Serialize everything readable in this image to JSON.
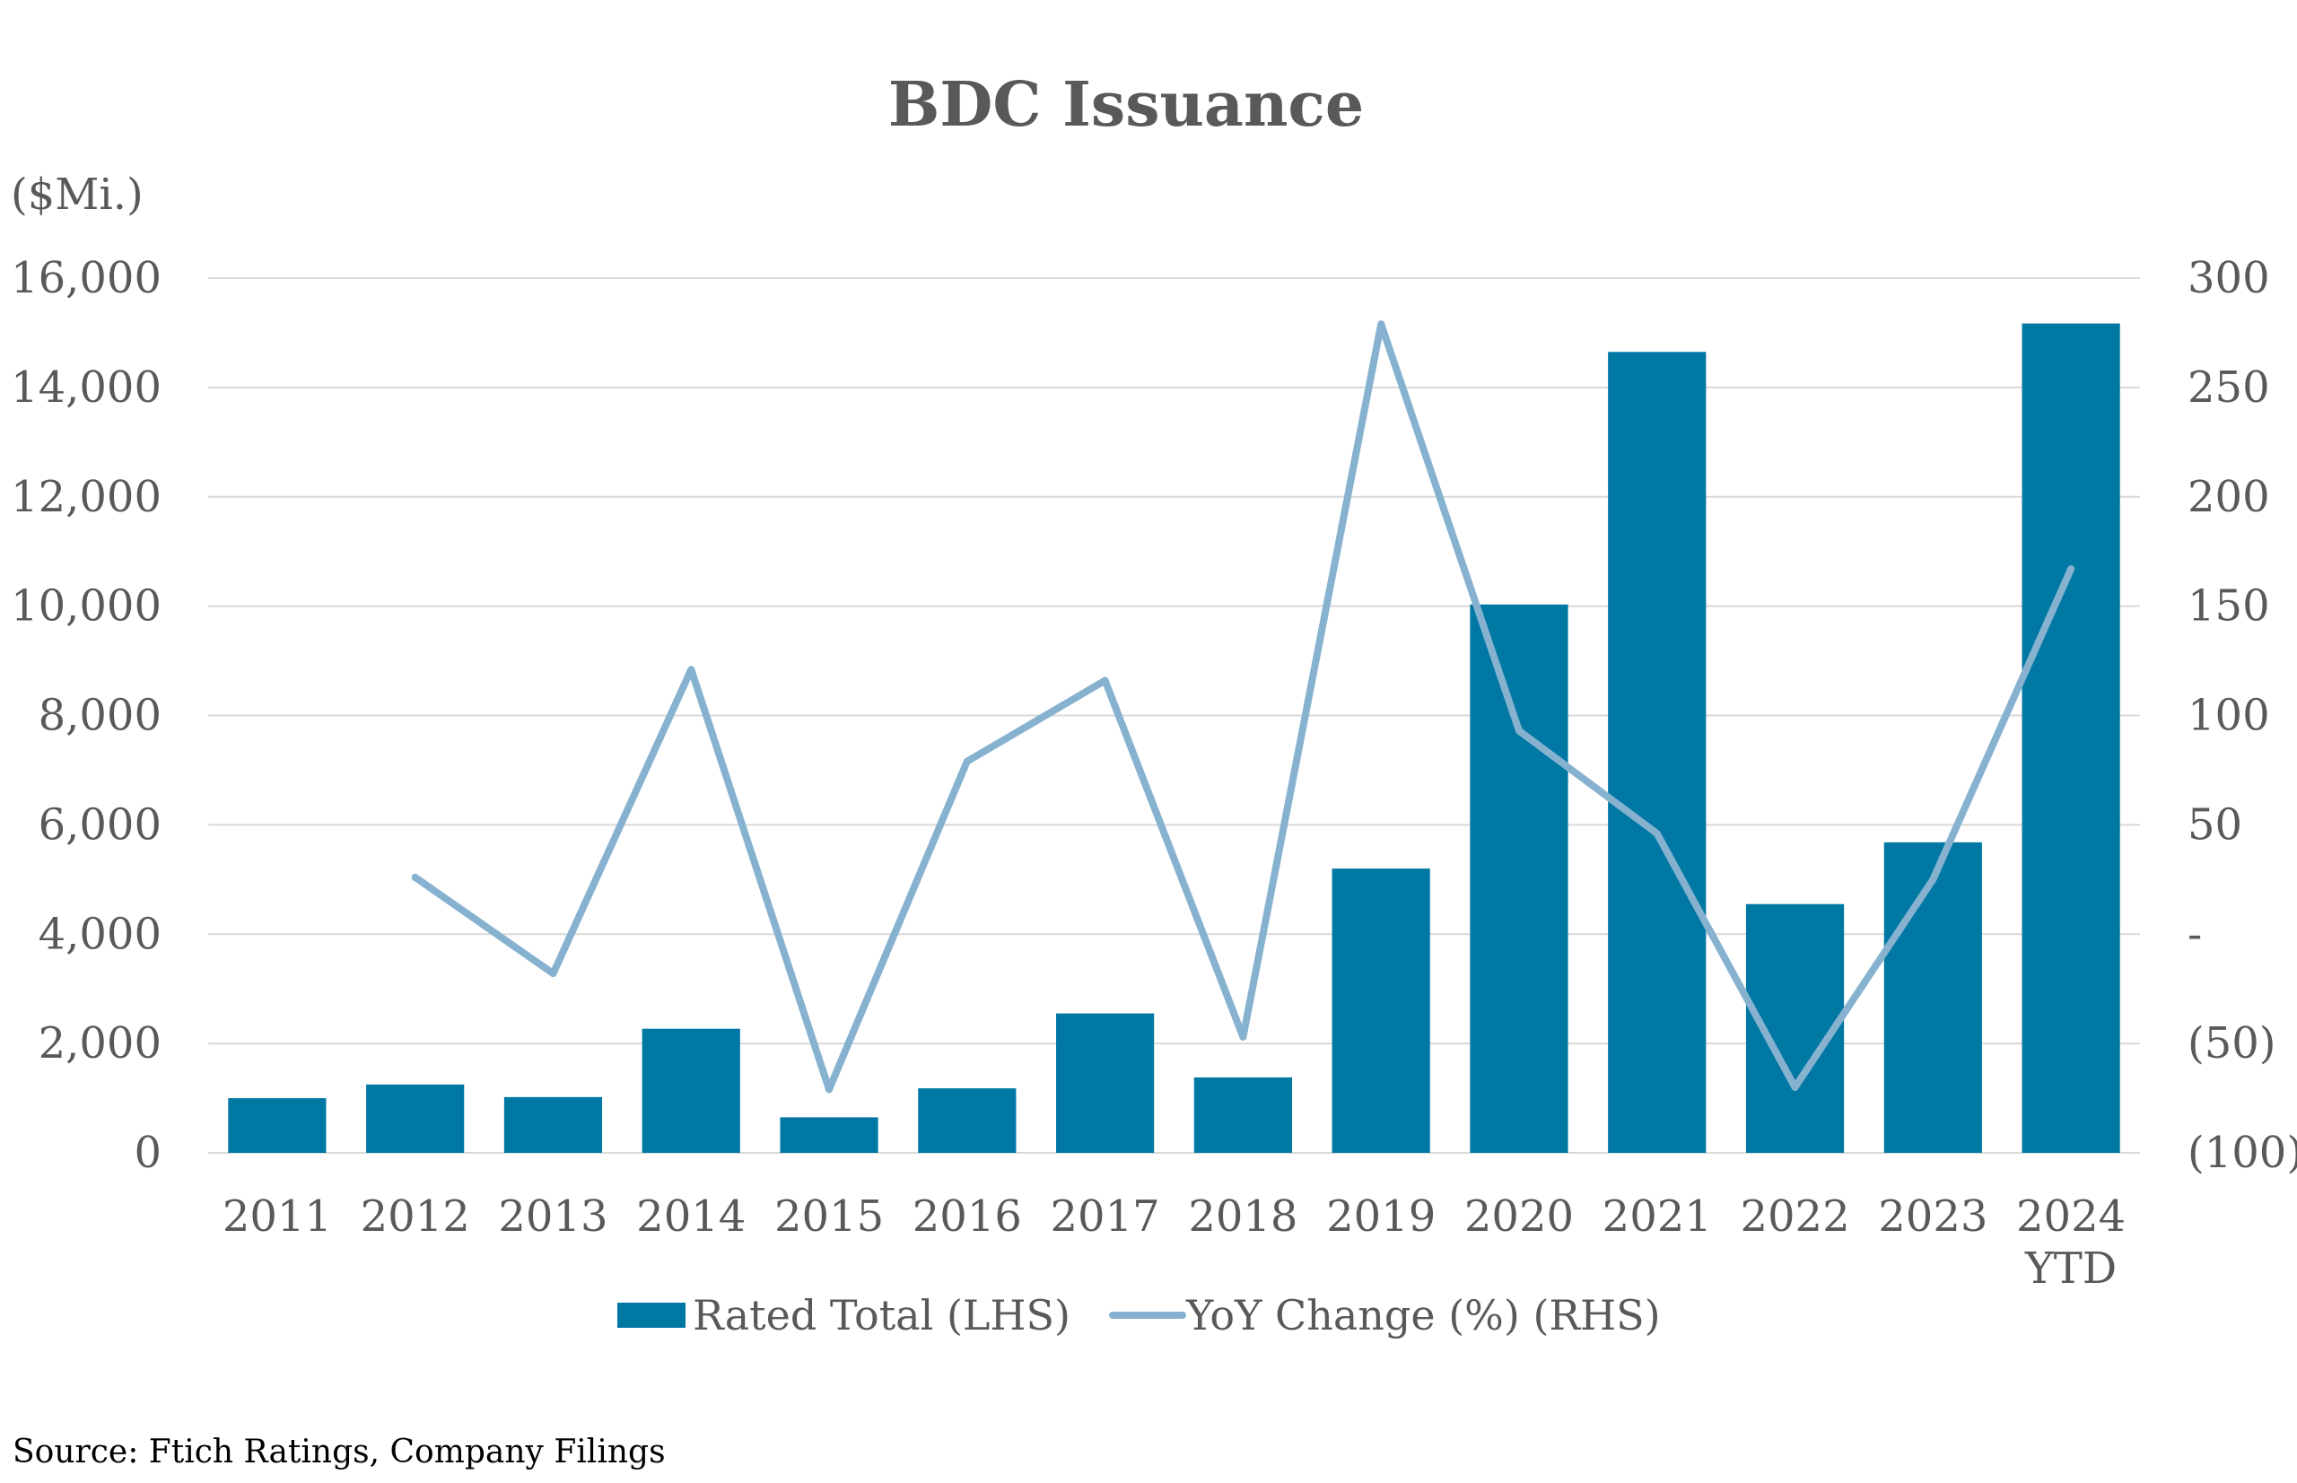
{
  "chart_data": {
    "type": "bar",
    "title": "BDC Issuance",
    "ylabel": "($Mi.)",
    "categories": [
      "2011",
      "2012",
      "2013",
      "2014",
      "2015",
      "2016",
      "2017",
      "2018",
      "2019",
      "2020",
      "2021",
      "2022",
      "2023",
      "2024 YTD"
    ],
    "category_lines": [
      [
        "2011"
      ],
      [
        "2012"
      ],
      [
        "2013"
      ],
      [
        "2014"
      ],
      [
        "2015"
      ],
      [
        "2016"
      ],
      [
        "2017"
      ],
      [
        "2018"
      ],
      [
        "2019"
      ],
      [
        "2020"
      ],
      [
        "2021"
      ],
      [
        "2022"
      ],
      [
        "2023"
      ],
      [
        "2024",
        "YTD"
      ]
    ],
    "series": [
      {
        "name": "Rated Total (LHS)",
        "type": "bar",
        "axis": "left",
        "color": "#0078A4",
        "values": [
          1000,
          1250,
          1020,
          2270,
          650,
          1180,
          2550,
          1380,
          5200,
          10030,
          14650,
          4550,
          5680,
          15170
        ]
      },
      {
        "name": "YoY Change (%) (RHS)",
        "type": "line",
        "axis": "right",
        "color": "#86B2D0",
        "values": [
          null,
          26,
          -18,
          121,
          -71,
          79,
          116,
          -47,
          279,
          93,
          46,
          -70,
          25,
          167
        ]
      }
    ],
    "y_left": {
      "min": 0,
      "max": 16000,
      "ticks": [
        0,
        2000,
        4000,
        6000,
        8000,
        10000,
        12000,
        14000,
        16000
      ],
      "tick_labels": [
        "0",
        "2,000",
        "4,000",
        "6,000",
        "8,000",
        "10,000",
        "12,000",
        "14,000",
        "16,000"
      ]
    },
    "y_right": {
      "min": -100,
      "max": 300,
      "ticks": [
        -100,
        -50,
        0,
        50,
        100,
        150,
        200,
        250,
        300
      ],
      "tick_labels": [
        "(100)",
        "(50)",
        "-",
        "50",
        "100",
        "150",
        "200",
        "250",
        "300"
      ]
    },
    "grid": true,
    "legend_position": "bottom"
  },
  "source_note": "Source: Ftich Ratings, Company Filings"
}
